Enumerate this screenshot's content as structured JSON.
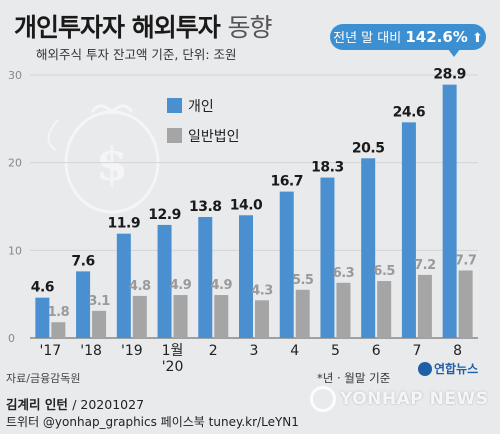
{
  "header": {
    "title_bold": "개인투자자 해외투자",
    "title_light": "동향",
    "subtitle": "해외주식 투자 잔고액 기준, 단위: 조원",
    "badge_prefix": "전년 말 대비",
    "badge_value": "142.6%",
    "badge_arrow": "⬆"
  },
  "colors": {
    "individual": "#4a90d0",
    "corporate": "#a5a5a5",
    "badge": "#3c8fd1"
  },
  "chart_data": {
    "type": "bar",
    "title": "개인투자자 해외투자 동향",
    "subtitle": "해외주식 투자 잔고액 기준, 단위: 조원",
    "categories": [
      "'17",
      "'18",
      "'19",
      "1월",
      "2",
      "3",
      "4",
      "5",
      "6",
      "7",
      "8"
    ],
    "category_sublabels": [
      "",
      "",
      "",
      "'20",
      "",
      "",
      "",
      "",
      "",
      "",
      ""
    ],
    "series": [
      {
        "name": "개인",
        "values": [
          4.6,
          7.6,
          11.9,
          12.9,
          13.8,
          14.0,
          16.7,
          18.3,
          20.5,
          24.6,
          28.9
        ]
      },
      {
        "name": "일반법인",
        "values": [
          1.8,
          3.1,
          4.8,
          4.9,
          4.9,
          4.3,
          5.5,
          6.3,
          6.5,
          7.2,
          7.7
        ]
      }
    ],
    "ylim": [
      0,
      30
    ],
    "yticks": [
      0,
      10,
      20,
      30
    ],
    "grid": true,
    "legend": "top-left"
  },
  "footer": {
    "source": "자료/금융감독원",
    "note": "*년 · 월말 기준",
    "credit_name": "김계리 인턴",
    "credit_date": "/ 20201027",
    "social": "트위터 @yonhap_graphics  페이스북 tuney.kr/LeYN1",
    "logo_text": "연합뉴스",
    "watermark": "YONHAP NEWS"
  }
}
